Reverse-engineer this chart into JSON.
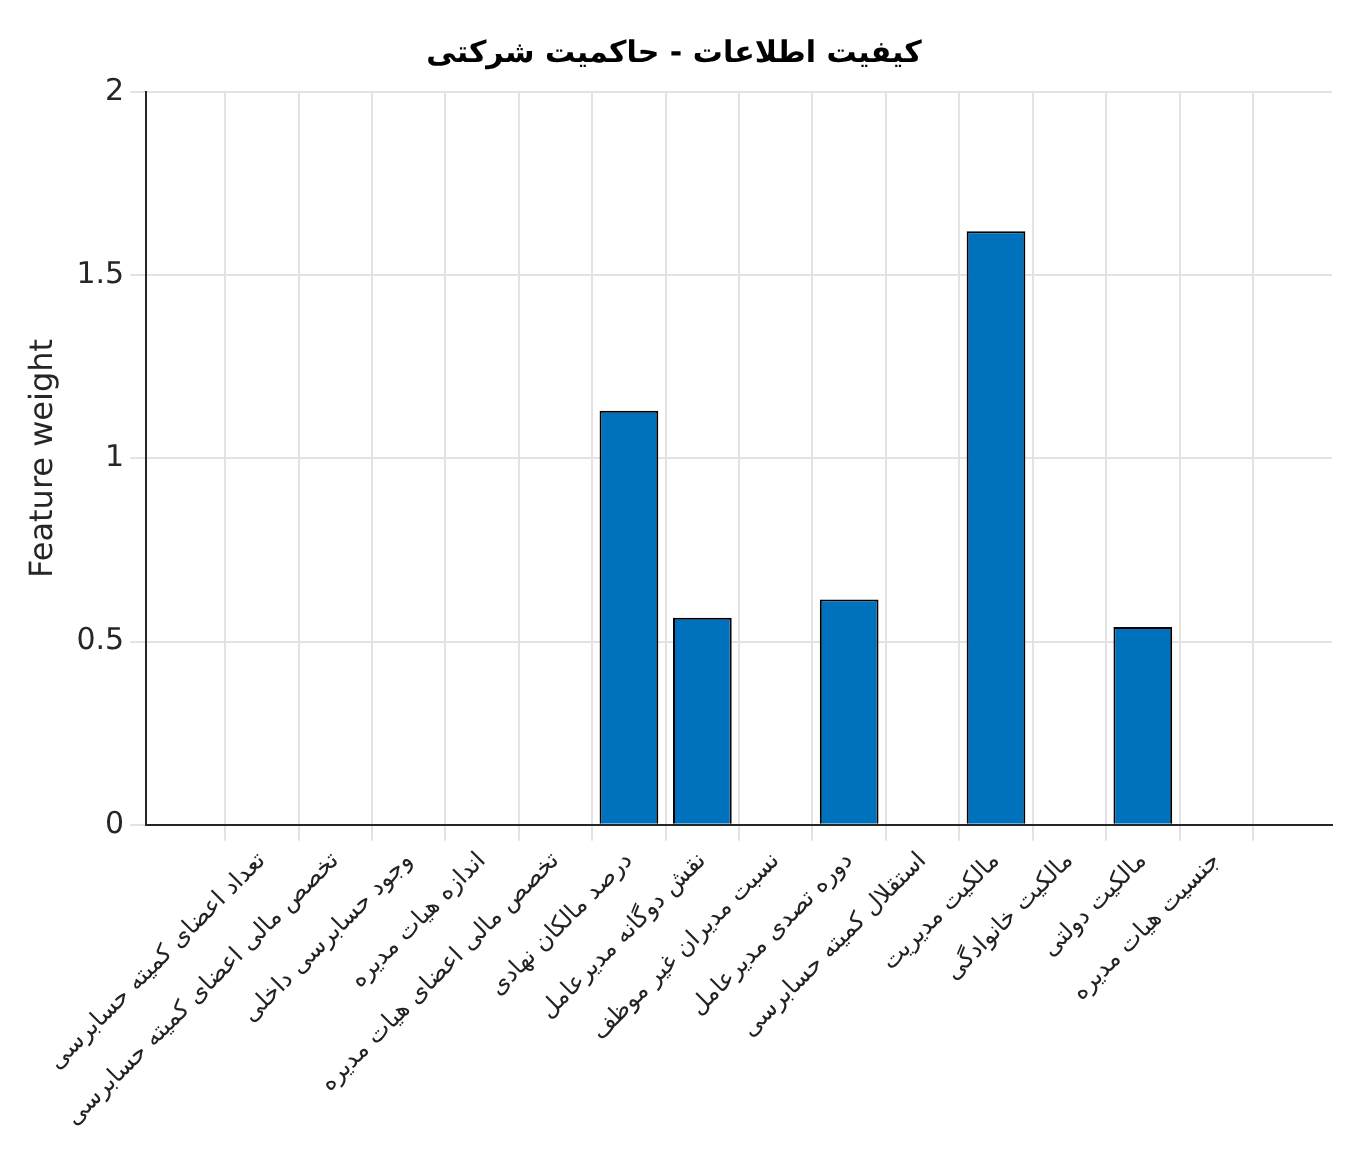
{
  "chart_data": {
    "type": "bar",
    "title": "کیفیت اطلاعات - حاکمیت شرکتی",
    "ylabel": "Feature weight",
    "categories": [
      "تعداد اعضای کمیته حسابرسی",
      "تخصص مالی اعضای کمیته حسابرسی",
      "وجود حسابرسی داخلی",
      "اندازه هیات مدیره",
      "تخصص مالی اعضای هیات مدیره",
      "درصد مالکان نهادی",
      "نقش دوگانه مدیرعامل",
      "نسبت مدیران غیر موظف",
      "دوره تصدی مدیرعامل",
      "استقلال کمیته حسابرسی",
      "مالکیت مدیریت",
      "مالکیت خانوادگی",
      "مالکیت دولتی",
      "جنسیت هیات مدیره"
    ],
    "values": [
      0,
      0,
      0,
      0,
      0,
      1.13,
      0.565,
      0,
      0.615,
      0,
      1.62,
      0,
      0.54,
      0
    ],
    "color": "#0072bd",
    "ylim": [
      0,
      2
    ],
    "yticks": [
      0,
      0.5,
      1,
      1.5,
      2
    ],
    "grid": true,
    "legend": false
  }
}
